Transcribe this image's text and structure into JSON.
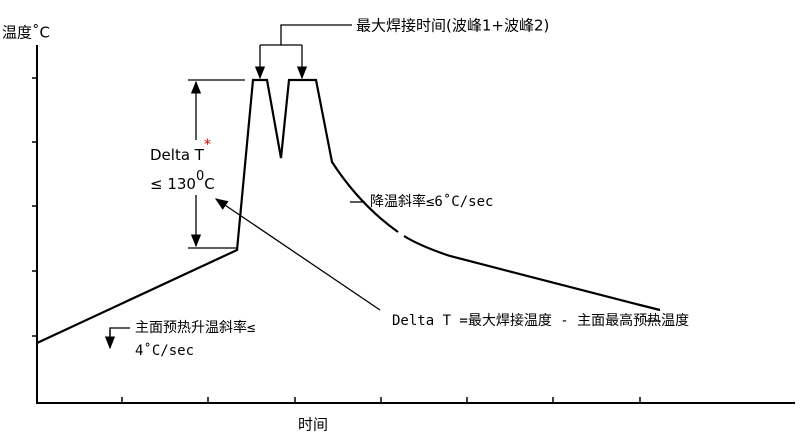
{
  "y_axis_label": "温度˚C",
  "x_axis_label": "时间",
  "max_solder_time": "最大焊接时间(波峰1+波峰2)",
  "delta_t": {
    "label": "Delta T",
    "asterisk": "*",
    "limit": "≤ 130",
    "superscript": "0",
    "unit": "C"
  },
  "cooling_rate": "降温斜率≤6˚C/sec",
  "delta_t_definition": "Delta T =最大焊接温度 - 主面最高预热温度",
  "preheat_rate": {
    "line1": "主面预热升温斜率≤",
    "line2": "4˚C/sec"
  }
}
